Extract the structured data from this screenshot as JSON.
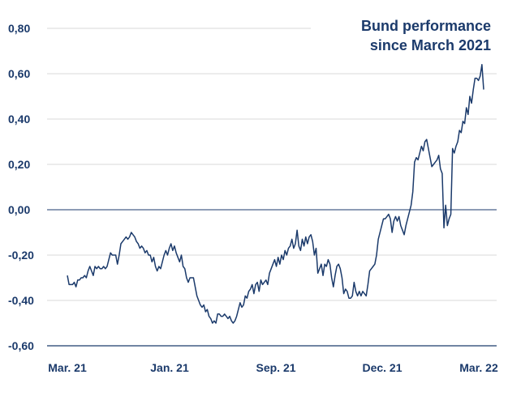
{
  "chart_data": {
    "type": "line",
    "title_lines": [
      "Bund performance",
      "since March 2021"
    ],
    "xlabel": "",
    "ylabel": "",
    "ylim": [
      -0.6,
      0.8
    ],
    "yticks": [
      "0,80",
      "0,60",
      "0,40",
      "0,20",
      "0,00",
      "-0,20",
      "-0,40",
      "-0,60"
    ],
    "ytick_values": [
      0.8,
      0.6,
      0.4,
      0.2,
      0.0,
      -0.2,
      -0.4,
      -0.6
    ],
    "xticks": [
      "Mar. 21",
      "Jan. 21",
      "Sep. 21",
      "Dec. 21",
      "Mar. 22"
    ],
    "grid": true,
    "line_color": "#1b3a6b",
    "grid_color": "#d9d9d9",
    "series": [
      {
        "values": [
          -0.29,
          -0.33,
          -0.33,
          -0.33,
          -0.32,
          -0.34,
          -0.31,
          -0.31,
          -0.3,
          -0.3,
          -0.29,
          -0.3,
          -0.27,
          -0.25,
          -0.27,
          -0.29,
          -0.25,
          -0.26,
          -0.25,
          -0.26,
          -0.26,
          -0.25,
          -0.26,
          -0.25,
          -0.22,
          -0.19,
          -0.2,
          -0.2,
          -0.2,
          -0.24,
          -0.2,
          -0.15,
          -0.14,
          -0.13,
          -0.12,
          -0.13,
          -0.12,
          -0.1,
          -0.11,
          -0.12,
          -0.14,
          -0.15,
          -0.17,
          -0.16,
          -0.17,
          -0.19,
          -0.18,
          -0.2,
          -0.2,
          -0.23,
          -0.21,
          -0.25,
          -0.27,
          -0.25,
          -0.26,
          -0.23,
          -0.2,
          -0.18,
          -0.2,
          -0.17,
          -0.15,
          -0.18,
          -0.16,
          -0.19,
          -0.21,
          -0.23,
          -0.2,
          -0.25,
          -0.26,
          -0.3,
          -0.32,
          -0.3,
          -0.3,
          -0.3,
          -0.34,
          -0.38,
          -0.4,
          -0.42,
          -0.43,
          -0.42,
          -0.45,
          -0.44,
          -0.47,
          -0.48,
          -0.5,
          -0.49,
          -0.5,
          -0.46,
          -0.46,
          -0.47,
          -0.47,
          -0.46,
          -0.47,
          -0.48,
          -0.47,
          -0.49,
          -0.5,
          -0.49,
          -0.47,
          -0.44,
          -0.41,
          -0.43,
          -0.42,
          -0.38,
          -0.39,
          -0.36,
          -0.35,
          -0.33,
          -0.37,
          -0.33,
          -0.32,
          -0.36,
          -0.31,
          -0.33,
          -0.32,
          -0.31,
          -0.33,
          -0.28,
          -0.26,
          -0.24,
          -0.22,
          -0.25,
          -0.21,
          -0.24,
          -0.2,
          -0.22,
          -0.18,
          -0.2,
          -0.17,
          -0.16,
          -0.13,
          -0.17,
          -0.15,
          -0.09,
          -0.16,
          -0.18,
          -0.13,
          -0.16,
          -0.12,
          -0.15,
          -0.12,
          -0.11,
          -0.14,
          -0.2,
          -0.17,
          -0.28,
          -0.26,
          -0.24,
          -0.29,
          -0.24,
          -0.25,
          -0.22,
          -0.24,
          -0.3,
          -0.34,
          -0.29,
          -0.25,
          -0.24,
          -0.26,
          -0.3,
          -0.37,
          -0.35,
          -0.36,
          -0.39,
          -0.39,
          -0.38,
          -0.32,
          -0.36,
          -0.38,
          -0.36,
          -0.38,
          -0.36,
          -0.37,
          -0.38,
          -0.33,
          -0.27,
          -0.26,
          -0.25,
          -0.24,
          -0.2,
          -0.13,
          -0.1,
          -0.07,
          -0.04,
          -0.04,
          -0.03,
          -0.02,
          -0.04,
          -0.1,
          -0.05,
          -0.03,
          -0.05,
          -0.03,
          -0.07,
          -0.09,
          -0.11,
          -0.07,
          -0.04,
          -0.01,
          0.02,
          0.08,
          0.21,
          0.23,
          0.22,
          0.25,
          0.28,
          0.26,
          0.3,
          0.31,
          0.27,
          0.23,
          0.19,
          0.2,
          0.21,
          0.22,
          0.24,
          0.18,
          0.16,
          -0.08,
          0.02,
          -0.07,
          -0.04,
          -0.02,
          0.27,
          0.25,
          0.28,
          0.3,
          0.35,
          0.34,
          0.39,
          0.38,
          0.45,
          0.42,
          0.5,
          0.47,
          0.53,
          0.58,
          0.58,
          0.57,
          0.59,
          0.64,
          0.53
        ]
      }
    ]
  }
}
